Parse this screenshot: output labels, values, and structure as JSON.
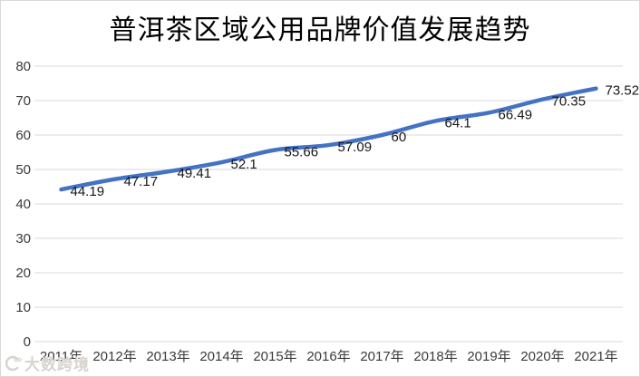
{
  "chart_data": {
    "type": "line",
    "title": "普洱茶区域公用品牌价值发展趋势",
    "categories": [
      "2011年",
      "2012年",
      "2013年",
      "2014年",
      "2015年",
      "2016年",
      "2017年",
      "2018年",
      "2019年",
      "2020年",
      "2021年"
    ],
    "values": [
      44.19,
      47.17,
      49.41,
      52.1,
      55.66,
      57.09,
      60,
      64.1,
      66.49,
      70.35,
      73.52
    ],
    "data_labels": [
      "44.19",
      "47.17",
      "49.41",
      "52.1",
      "55.66",
      "57.09",
      "60",
      "64.1",
      "66.49",
      "70.35",
      "73.52"
    ],
    "xlabel": "",
    "ylabel": "",
    "ylim": [
      0,
      80
    ],
    "yticks": [
      0,
      10,
      20,
      30,
      40,
      50,
      60,
      70,
      80
    ],
    "grid": true,
    "legend": "none",
    "line_color": "#4472C4",
    "gridline_color": "#D9D9D9",
    "axis_label_color": "#3A3A3A",
    "data_label_color": "#161616"
  },
  "watermark": {
    "text": "大数跨境"
  }
}
